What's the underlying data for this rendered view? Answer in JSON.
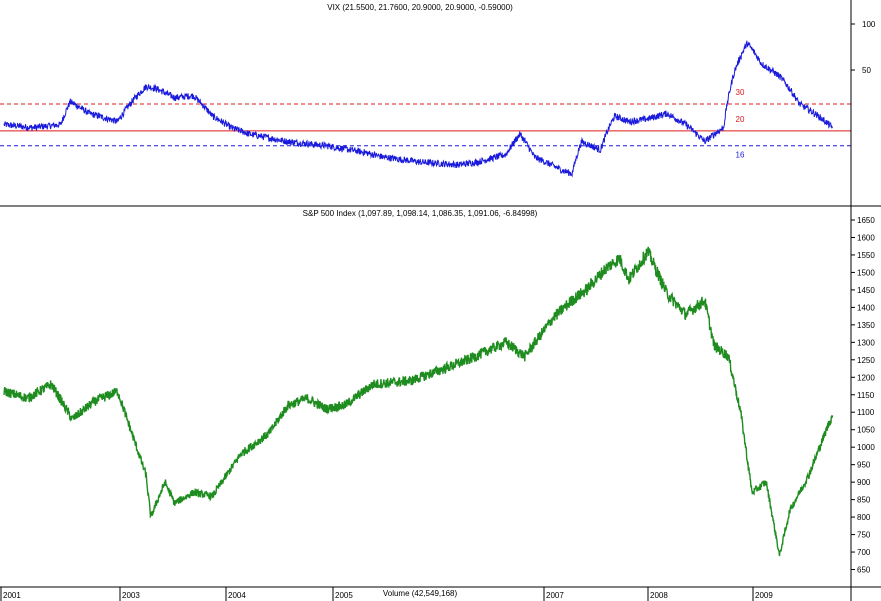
{
  "chart_data": [
    {
      "type": "line",
      "title": "VIX (21.5500, 21.7600, 20.9000, 20.9000, -0.59000)",
      "y_scale": "log",
      "ylim": [
        7.5,
        100
      ],
      "y_ticks": [
        "100",
        "50"
      ],
      "color": "#1a1adc",
      "reference_lines": [
        {
          "value": 30,
          "label": "30",
          "style": "dashed",
          "color": "#e01818"
        },
        {
          "value": 20,
          "label": "20",
          "style": "solid",
          "color": "#e01818"
        },
        {
          "value": 16,
          "label": "16",
          "style": "dashed",
          "color": "#1a1adc"
        }
      ],
      "x": [
        2001.0,
        2001.3,
        2001.6,
        2001.7,
        2001.9,
        2002.2,
        2002.5,
        2002.6,
        2002.8,
        2003.0,
        2003.2,
        2003.4,
        2003.6,
        2004.0,
        2004.4,
        2004.8,
        2005.0,
        2005.4,
        2005.8,
        2006.0,
        2006.3,
        2006.45,
        2006.6,
        2006.9,
        2007.0,
        2007.1,
        2007.3,
        2007.45,
        2007.6,
        2007.8,
        2008.0,
        2008.2,
        2008.4,
        2008.6,
        2008.72,
        2008.85,
        2009.0,
        2009.2,
        2009.4,
        2009.6,
        2009.75
      ],
      "values": [
        22,
        21,
        22,
        31,
        26,
        23,
        39,
        38,
        33,
        34,
        25,
        21,
        19,
        17,
        16,
        14.5,
        13.5,
        12.5,
        12,
        12.5,
        14,
        19,
        13.5,
        11,
        10.5,
        17,
        15,
        25,
        23,
        24,
        26,
        22,
        17,
        21,
        50,
        75,
        55,
        45,
        30,
        25,
        21
      ]
    },
    {
      "type": "line",
      "title": "S&P 500 Index (1,097.89, 1,098.14, 1,086.35, 1,091.06, -6.84998)",
      "ylim": [
        620,
        1670
      ],
      "y_ticks": [
        "1650",
        "1600",
        "1550",
        "1500",
        "1450",
        "1400",
        "1350",
        "1300",
        "1250",
        "1200",
        "1150",
        "1100",
        "1050",
        "1000",
        "950",
        "900",
        "850",
        "800",
        "750",
        "700",
        "650"
      ],
      "color": "#1e8c1e",
      "x": [
        2001.0,
        2001.25,
        2001.5,
        2001.72,
        2001.95,
        2002.2,
        2002.5,
        2002.55,
        2002.7,
        2002.8,
        2003.0,
        2003.2,
        2003.5,
        2003.8,
        2004.0,
        2004.2,
        2004.4,
        2004.6,
        2004.9,
        2005.3,
        2005.6,
        2005.9,
        2006.3,
        2006.5,
        2006.8,
        2007.0,
        2007.15,
        2007.35,
        2007.5,
        2007.6,
        2007.8,
        2008.0,
        2008.2,
        2008.4,
        2008.5,
        2008.65,
        2008.78,
        2008.9,
        2009.05,
        2009.19,
        2009.3,
        2009.5,
        2009.7,
        2009.75
      ],
      "values": [
        1160,
        1140,
        1180,
        1080,
        1130,
        1160,
        920,
        800,
        900,
        840,
        870,
        860,
        980,
        1040,
        1120,
        1140,
        1110,
        1120,
        1180,
        1190,
        1220,
        1250,
        1300,
        1260,
        1370,
        1420,
        1450,
        1510,
        1540,
        1480,
        1560,
        1440,
        1380,
        1420,
        1290,
        1260,
        1100,
        870,
        900,
        690,
        820,
        920,
        1060,
        1091
      ]
    },
    {
      "type": "bar",
      "title": "Volume (42,549,168)",
      "x_ticks": [
        "2001",
        "2003",
        "2004",
        "2005",
        "2007",
        "2008",
        "2009"
      ]
    }
  ]
}
